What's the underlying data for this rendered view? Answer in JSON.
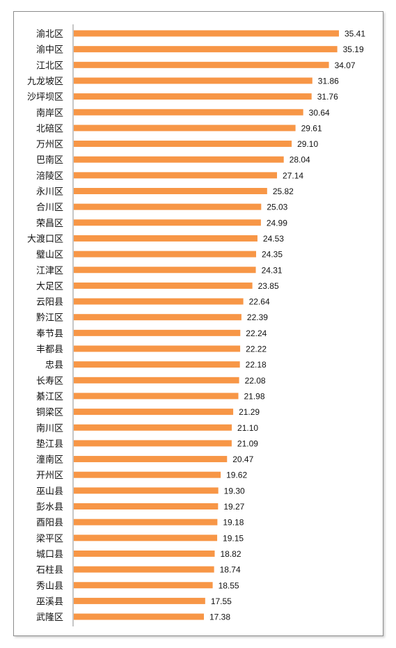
{
  "chart_data": {
    "type": "bar",
    "orientation": "horizontal",
    "categories": [
      "渝北区",
      "渝中区",
      "江北区",
      "九龙坡区",
      "沙坪坝区",
      "南岸区",
      "北碚区",
      "万州区",
      "巴南区",
      "涪陵区",
      "永川区",
      "合川区",
      "荣昌区",
      "大渡口区",
      "璧山区",
      "江津区",
      "大足区",
      "云阳县",
      "黔江区",
      "奉节县",
      "丰都县",
      "忠县",
      "长寿区",
      "綦江区",
      "铜梁区",
      "南川区",
      "垫江县",
      "潼南区",
      "开州区",
      "巫山县",
      "彭水县",
      "酉阳县",
      "梁平区",
      "城口县",
      "石柱县",
      "秀山县",
      "巫溪县",
      "武隆区"
    ],
    "values": [
      35.41,
      35.19,
      34.07,
      31.86,
      31.76,
      30.64,
      29.61,
      29.1,
      28.04,
      27.14,
      25.82,
      25.03,
      24.99,
      24.53,
      24.35,
      24.31,
      23.85,
      22.64,
      22.39,
      22.24,
      22.22,
      22.18,
      22.08,
      21.98,
      21.29,
      21.1,
      21.09,
      20.47,
      19.62,
      19.3,
      19.27,
      19.18,
      19.15,
      18.82,
      18.74,
      18.55,
      17.55,
      17.38
    ],
    "value_labels": [
      "35.41",
      "35.19",
      "34.07",
      "31.86",
      "31.76",
      "30.64",
      "29.61",
      "29.10",
      "28.04",
      "27.14",
      "25.82",
      "25.03",
      "24.99",
      "24.53",
      "24.35",
      "24.31",
      "23.85",
      "22.64",
      "22.39",
      "22.24",
      "22.22",
      "22.18",
      "22.08",
      "21.98",
      "21.29",
      "21.10",
      "21.09",
      "20.47",
      "19.62",
      "19.30",
      "19.27",
      "19.18",
      "19.15",
      "18.82",
      "18.74",
      "18.55",
      "17.55",
      "17.38"
    ],
    "bar_color": "#f79646",
    "axis_color": "#8c8c8c",
    "xlim": [
      0,
      35.41
    ],
    "grid": false,
    "legend": "none"
  }
}
